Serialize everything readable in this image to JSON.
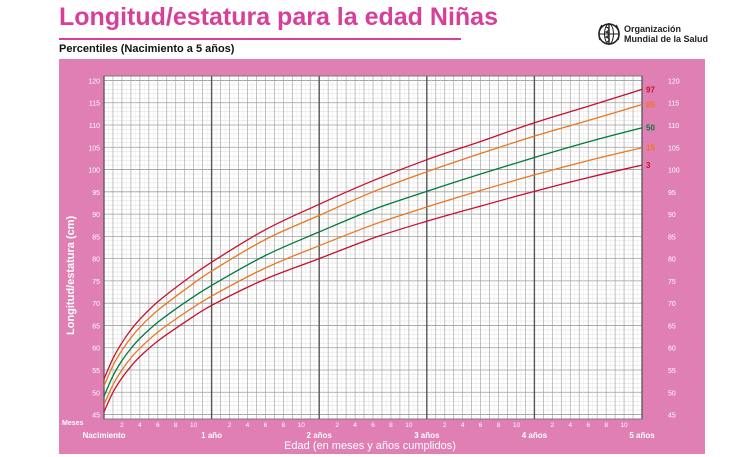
{
  "header": {
    "title": "Longitud/estatura para la edad Niñas",
    "subtitle": "Percentiles (Nacimiento a 5 años)",
    "logo_line1": "Organización",
    "logo_line2": "Mundial de la Salud"
  },
  "colors": {
    "panel": "#e07fb4",
    "title": "#d6409a",
    "p3_97": "#c8102e",
    "p15_85": "#e87722",
    "p50": "#007a3d"
  },
  "chart_data": {
    "type": "line",
    "title": "Longitud/estatura para la edad Niñas",
    "subtitle": "Percentiles (Nacimiento a 5 años)",
    "xlabel": "Edad (en meses y años cumplidos)",
    "ylabel": "Longitud/estatura (cm)",
    "x_unit": "meses",
    "xlim": [
      0,
      60
    ],
    "ylim": [
      44,
      121
    ],
    "grid": true,
    "y_ticks": [
      "45",
      "50",
      "55",
      "60",
      "65",
      "70",
      "75",
      "80",
      "85",
      "90",
      "95",
      "100",
      "105",
      "110",
      "115",
      "120"
    ],
    "x_major_labels": [
      {
        "month": 0,
        "label": "Nacimiento"
      },
      {
        "month": 12,
        "label": "1 año"
      },
      {
        "month": 24,
        "label": "2 años"
      },
      {
        "month": 36,
        "label": "3 años"
      },
      {
        "month": 48,
        "label": "4 años"
      },
      {
        "month": 60,
        "label": "5 años"
      }
    ],
    "x_minor_labels": [
      "2",
      "4",
      "6",
      "8",
      "10"
    ],
    "x_axis_prefix": "Meses",
    "x": [
      0,
      1,
      2,
      3,
      4,
      6,
      9,
      12,
      18,
      24,
      30,
      36,
      42,
      48,
      54,
      60
    ],
    "series": [
      {
        "name": "97",
        "color": "#c8102e",
        "values": [
          53.0,
          57.6,
          61.1,
          64.0,
          66.4,
          70.3,
          75.0,
          79.2,
          86.5,
          92.2,
          97.5,
          102.2,
          106.3,
          110.5,
          114.2,
          118.0
        ]
      },
      {
        "name": "85",
        "color": "#e87722",
        "values": [
          51.4,
          56.0,
          59.4,
          62.2,
          64.6,
          68.4,
          73.0,
          77.2,
          84.3,
          89.7,
          95.0,
          99.5,
          103.6,
          107.5,
          111.0,
          114.6
        ]
      },
      {
        "name": "50",
        "color": "#007a3d",
        "values": [
          49.1,
          53.7,
          57.1,
          59.8,
          62.1,
          65.7,
          70.1,
          74.0,
          80.7,
          86.0,
          91.0,
          95.1,
          99.0,
          102.7,
          106.2,
          109.4
        ]
      },
      {
        "name": "15",
        "color": "#e87722",
        "values": [
          47.2,
          51.7,
          55.0,
          57.7,
          59.9,
          63.5,
          67.8,
          71.6,
          77.9,
          82.9,
          87.6,
          91.6,
          95.3,
          98.8,
          102.0,
          104.9
        ]
      },
      {
        "name": "3",
        "color": "#c8102e",
        "values": [
          45.6,
          50.0,
          53.2,
          55.8,
          58.0,
          61.5,
          65.7,
          69.5,
          75.4,
          80.0,
          84.6,
          88.4,
          91.8,
          95.1,
          98.2,
          101.0
        ]
      }
    ]
  }
}
